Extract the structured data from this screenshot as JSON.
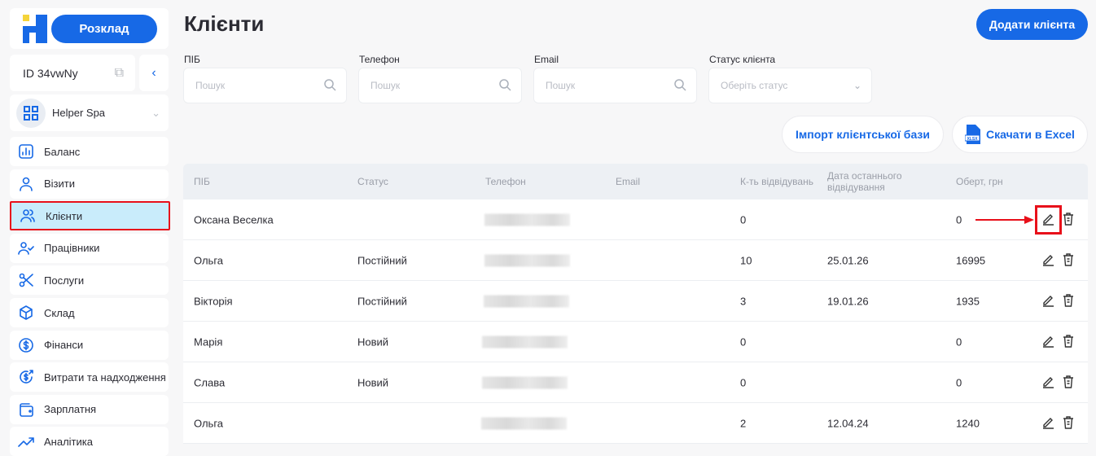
{
  "sidebar": {
    "schedule_label": "Розклад",
    "account_id": "ID 34vwNy",
    "organization": "Helper Spa",
    "items": [
      {
        "label": "Баланс",
        "icon": "chart-icon"
      },
      {
        "label": "Візити",
        "icon": "user-icon"
      },
      {
        "label": "Клієнти",
        "icon": "users-icon",
        "active": true
      },
      {
        "label": "Працівники",
        "icon": "user-check-icon"
      },
      {
        "label": "Послуги",
        "icon": "scissors-icon"
      },
      {
        "label": "Склад",
        "icon": "box-icon"
      },
      {
        "label": "Фінанси",
        "icon": "dollar-icon"
      },
      {
        "label": "Витрати та надходження",
        "icon": "dollar-arrow-icon"
      },
      {
        "label": "Зарплатня",
        "icon": "wallet-icon"
      },
      {
        "label": "Аналітика",
        "icon": "trend-icon"
      }
    ]
  },
  "header": {
    "title": "Клієнти",
    "add_label": "Додати клієнта"
  },
  "filters": [
    {
      "label": "ПІБ",
      "placeholder": "Пошук"
    },
    {
      "label": "Телефон",
      "placeholder": "Пошук"
    },
    {
      "label": "Email",
      "placeholder": "Пошук"
    },
    {
      "label": "Статус клієнта",
      "placeholder": "Оберіть статус"
    }
  ],
  "actions": {
    "import_label": "Імпорт клієнтської бази",
    "export_label": "Скачати в Excel"
  },
  "table": {
    "columns": [
      "ПІБ",
      "Статус",
      "Телефон",
      "Email",
      "К-ть відвідувань",
      "Дата останнього відвідування",
      "Оберт, грн"
    ],
    "rows": [
      {
        "name": "Оксана Веселка",
        "status": "",
        "visits": "0",
        "last": "",
        "turnover": "0"
      },
      {
        "name": "Ольга",
        "status": "Постійний",
        "visits": "10",
        "last": "25.01.26",
        "turnover": "16995"
      },
      {
        "name": "Вікторія",
        "status": "Постійний",
        "visits": "3",
        "last": "19.01.26",
        "turnover": "1935"
      },
      {
        "name": "Марія",
        "status": "Новий",
        "visits": "0",
        "last": "",
        "turnover": "0"
      },
      {
        "name": "Слава",
        "status": "Новий",
        "visits": "0",
        "last": "",
        "turnover": "0"
      },
      {
        "name": "Ольга",
        "status": "",
        "visits": "2",
        "last": "12.04.24",
        "turnover": "1240"
      }
    ]
  },
  "colors": {
    "accent": "#1769e6",
    "highlight": "#e8101a"
  }
}
